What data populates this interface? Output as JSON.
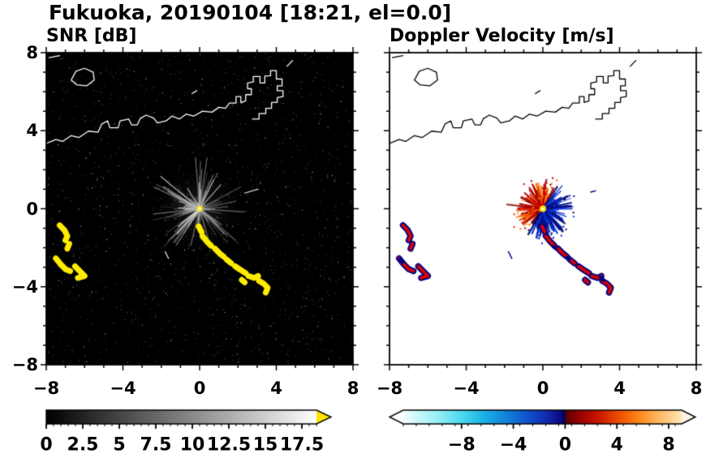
{
  "title": "Fukuoka, 20190104 [18:21, el=0.0]",
  "panels": {
    "snr": {
      "title": "SNR [dB]",
      "bg": "#000000",
      "coast_color": "#ffffff",
      "echo_color": "#ffec00"
    },
    "velocity": {
      "title": "Doppler Velocity [m/s]",
      "bg": "#ffffff",
      "coast_color": "#000000",
      "echo_edge_color": "#000080",
      "echo_core_color": "#dd0000"
    }
  },
  "axes": {
    "range": [
      -8,
      8
    ],
    "major_tick_step": 4,
    "minor_tick_step": 1,
    "tick_values": [
      -8,
      -4,
      0,
      4,
      8
    ],
    "tick_labels": [
      "−8",
      "−4",
      "0",
      "4",
      "8"
    ]
  },
  "colorbars": {
    "snr": {
      "range": [
        0,
        18.5
      ],
      "minor_step": 0.5,
      "tick_values": [
        0,
        2.5,
        5,
        7.5,
        10,
        12.5,
        15,
        17.5
      ],
      "tick_labels": [
        "0",
        "2.5",
        "5",
        "7.5",
        "10",
        "12.5",
        "15",
        "17.5"
      ],
      "gradient": [
        "#000000",
        "#ffffff"
      ],
      "over_color": "#ffe400"
    },
    "velocity": {
      "range": [
        -12.5,
        9
      ],
      "minor_step": 1,
      "tick_values": [
        -8,
        -4,
        0,
        4,
        8
      ],
      "tick_labels": [
        "−8",
        "−4",
        "0",
        "4",
        "8"
      ],
      "stops": [
        [
          0.0,
          "#f4ffff"
        ],
        [
          0.05,
          "#ccf8fa"
        ],
        [
          0.13,
          "#90eef5"
        ],
        [
          0.21,
          "#4cd8ee"
        ],
        [
          0.29,
          "#1ab2e6"
        ],
        [
          0.37,
          "#1282d8"
        ],
        [
          0.45,
          "#1050cc"
        ],
        [
          0.52,
          "#1028ac"
        ],
        [
          0.565,
          "#0a0a80"
        ],
        [
          0.581,
          "#000052"
        ],
        [
          0.585,
          "#5c0000"
        ],
        [
          0.63,
          "#940000"
        ],
        [
          0.7,
          "#c81600"
        ],
        [
          0.78,
          "#ee5200"
        ],
        [
          0.85,
          "#ff8a1e"
        ],
        [
          0.92,
          "#ffba66"
        ],
        [
          1.0,
          "#ffe6b8"
        ]
      ],
      "under_color": "#ffffff",
      "over_color": "#fff4e4",
      "warm_palette": [
        "#8c0000",
        "#c00000",
        "#e03000",
        "#f56000",
        "#ff8c1a"
      ],
      "cool_palette": [
        "#000060",
        "#001090",
        "#0028c0",
        "#1240e0"
      ]
    }
  },
  "chart_data": {
    "type": "radar_ppi_pair",
    "site": "Fukuoka",
    "date": "20190104",
    "time": "18:21",
    "elevation_deg": 0.0,
    "x_range": [
      -8,
      8
    ],
    "y_range": [
      -8,
      8
    ],
    "radar_center": [
      0,
      0
    ],
    "panels": [
      {
        "variable": "SNR",
        "units": "dB",
        "scale_min": 0,
        "scale_max": 17.5
      },
      {
        "variable": "Doppler Velocity",
        "units": "m/s",
        "scale_min": -8,
        "scale_max": 8
      }
    ],
    "coastline": [
      [
        [
          -8,
          3.35
        ],
        [
          -7.5,
          3.55
        ],
        [
          -7.15,
          3.45
        ],
        [
          -6.7,
          3.75
        ],
        [
          -6.3,
          3.65
        ],
        [
          -5.8,
          3.98
        ],
        [
          -5.3,
          3.92
        ],
        [
          -5.1,
          4.35
        ],
        [
          -4.8,
          4.5
        ],
        [
          -4.68,
          4.15
        ],
        [
          -4.25,
          4.15
        ],
        [
          -4.15,
          4.5
        ],
        [
          -3.7,
          4.6
        ],
        [
          -3.55,
          4.3
        ],
        [
          -3.25,
          4.3
        ],
        [
          -3.1,
          4.62
        ],
        [
          -2.8,
          4.8
        ],
        [
          -2.4,
          4.65
        ],
        [
          -2.2,
          4.4
        ],
        [
          -1.75,
          4.5
        ],
        [
          -1.45,
          4.75
        ],
        [
          -1.05,
          4.6
        ],
        [
          -0.7,
          4.85
        ],
        [
          -0.3,
          4.75
        ],
        [
          0.15,
          5.0
        ],
        [
          0.65,
          4.95
        ],
        [
          1.0,
          5.2
        ],
        [
          1.35,
          5.15
        ],
        [
          1.55,
          5.42
        ],
        [
          1.9,
          5.42
        ],
        [
          1.9,
          5.75
        ],
        [
          2.15,
          5.75
        ],
        [
          2.15,
          5.45
        ],
        [
          2.4,
          5.52
        ],
        [
          2.4,
          5.85
        ],
        [
          2.7,
          5.85
        ],
        [
          2.7,
          6.15
        ],
        [
          2.5,
          6.15
        ],
        [
          2.5,
          6.45
        ],
        [
          2.8,
          6.5
        ],
        [
          2.8,
          6.78
        ],
        [
          3.15,
          6.78
        ],
        [
          3.15,
          6.45
        ],
        [
          3.4,
          6.45
        ],
        [
          3.4,
          6.8
        ],
        [
          3.7,
          6.82
        ],
        [
          3.7,
          7.08
        ],
        [
          4.0,
          7.08
        ],
        [
          4.0,
          6.65
        ],
        [
          4.3,
          6.65
        ],
        [
          4.3,
          6.3
        ],
        [
          4.05,
          6.3
        ],
        [
          4.05,
          6.05
        ],
        [
          4.35,
          6.05
        ],
        [
          4.35,
          5.75
        ],
        [
          4.05,
          5.7
        ],
        [
          4.05,
          5.45
        ],
        [
          3.75,
          5.45
        ],
        [
          3.75,
          5.15
        ],
        [
          3.45,
          5.15
        ],
        [
          3.45,
          4.88
        ],
        [
          3.1,
          4.88
        ],
        [
          3.1,
          4.6
        ],
        [
          2.75,
          4.6
        ]
      ],
      [
        [
          -6.7,
          6.6
        ],
        [
          -6.45,
          7.05
        ],
        [
          -6.0,
          7.2
        ],
        [
          -5.55,
          7.0
        ],
        [
          -5.5,
          6.6
        ],
        [
          -5.9,
          6.3
        ],
        [
          -6.4,
          6.35
        ],
        [
          -6.7,
          6.6
        ]
      ],
      [
        [
          -7.85,
          7.75
        ],
        [
          -7.3,
          7.85
        ]
      ],
      [
        [
          -0.4,
          5.9
        ],
        [
          -0.15,
          6.05
        ]
      ],
      [
        [
          4.55,
          7.3
        ],
        [
          4.85,
          7.6
        ]
      ]
    ],
    "echoes": [
      [
        [
          -0.05,
          -0.9
        ],
        [
          0.1,
          -1.2
        ]
      ],
      [
        [
          0.15,
          -1.4
        ],
        [
          0.4,
          -1.7
        ],
        [
          0.6,
          -1.9
        ]
      ],
      [
        [
          0.8,
          -2.05
        ],
        [
          1.05,
          -2.3
        ],
        [
          1.25,
          -2.45
        ]
      ],
      [
        [
          1.4,
          -2.6
        ],
        [
          1.65,
          -2.8
        ]
      ],
      [
        [
          1.85,
          -2.95
        ],
        [
          2.15,
          -3.15
        ],
        [
          2.4,
          -3.3
        ]
      ],
      [
        [
          2.55,
          -3.45
        ],
        [
          2.85,
          -3.55
        ],
        [
          3.05,
          -3.45
        ]
      ],
      [
        [
          3.1,
          -3.7
        ],
        [
          3.35,
          -3.85
        ],
        [
          3.55,
          -4.05
        ],
        [
          3.45,
          -4.3
        ]
      ],
      [
        [
          2.2,
          -3.65
        ],
        [
          2.35,
          -3.78
        ]
      ],
      [
        [
          -7.3,
          -0.85
        ],
        [
          -7.05,
          -1.1
        ],
        [
          -6.9,
          -1.4
        ],
        [
          -7.0,
          -1.62
        ]
      ],
      [
        [
          -6.8,
          -1.8
        ],
        [
          -6.9,
          -2.05
        ]
      ],
      [
        [
          -7.5,
          -2.55
        ],
        [
          -7.25,
          -2.85
        ],
        [
          -7.0,
          -3.1
        ],
        [
          -6.75,
          -3.2
        ]
      ],
      [
        [
          -6.5,
          -2.95
        ],
        [
          -6.2,
          -3.25
        ],
        [
          -6.0,
          -3.45
        ],
        [
          -6.35,
          -3.55
        ]
      ]
    ],
    "echo_neg_bits": [
      [
        [
          0.55,
          -1.95
        ],
        [
          0.68,
          -2.05
        ]
      ],
      [
        [
          3.0,
          -3.5
        ],
        [
          3.15,
          -3.66
        ]
      ],
      [
        [
          -7.45,
          -2.6
        ],
        [
          -7.32,
          -2.74
        ]
      ],
      [
        [
          1.25,
          -2.5
        ],
        [
          1.38,
          -2.6
        ]
      ]
    ],
    "thin_marks": {
      "snr": [
        [
          [
            -1.8,
            -2.2
          ],
          [
            -1.62,
            -2.55
          ]
        ],
        [
          [
            2.35,
            0.8
          ],
          [
            3.05,
            1.0
          ]
        ]
      ],
      "vel": [
        [
          [
            -1.8,
            -2.2
          ],
          [
            -1.62,
            -2.55
          ]
        ],
        [
          [
            2.5,
            0.85
          ],
          [
            2.75,
            0.92
          ]
        ]
      ]
    },
    "vel_spikes": [
      {
        "to": [
          1.05,
          -0.6
        ],
        "c": "neg"
      },
      {
        "to": [
          0.9,
          -1.05
        ],
        "c": "neg"
      },
      {
        "to": [
          1.35,
          0.15
        ],
        "c": "neg"
      },
      {
        "to": [
          -0.55,
          1.25
        ],
        "c": "pos"
      },
      {
        "to": [
          0.15,
          1.4
        ],
        "c": "pos"
      },
      {
        "to": [
          -0.95,
          0.8
        ],
        "c": "pos"
      },
      {
        "to": [
          -1.2,
          0.25
        ],
        "c": "pos"
      }
    ],
    "speckle": {
      "seed": 3,
      "count": 1700
    },
    "beam_streaks": {
      "seed": 42,
      "count": 150,
      "max_len": 2.5
    },
    "velocity_splash": {
      "seed": 7,
      "count": 320,
      "max_len": 1.25
    }
  }
}
